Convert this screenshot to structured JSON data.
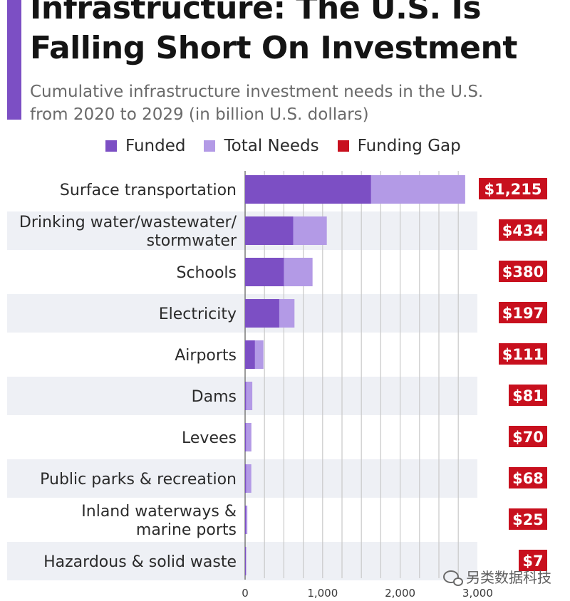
{
  "header": {
    "title": "Infrastructure: The U.S. Is\nFalling Short On Investment",
    "subtitle": "Cumulative infrastructure investment needs in the U.S.\nfrom 2020 to 2029 (in billion U.S. dollars)"
  },
  "watermark": "另类数据科技",
  "chart_data": {
    "type": "bar",
    "orientation": "horizontal",
    "stacked": false,
    "categories": [
      "Surface transportation",
      "Drinking water/wastewater/\nstormwater",
      "Schools",
      "Electricity",
      "Airports",
      "Dams",
      "Levees",
      "Public parks & recreation",
      "Inland waterways &\nmarine ports",
      "Hazardous & solid waste"
    ],
    "series": [
      {
        "name": "Funded",
        "color": "#7c4fc4",
        "values": [
          1624,
          620,
          500,
          440,
          126,
          12,
          11,
          12,
          4,
          3
        ]
      },
      {
        "name": "Total Needs",
        "color": "#b39ae6",
        "values": [
          2839,
          1054,
          870,
          637,
          237,
          93,
          81,
          80,
          29,
          10
        ]
      }
    ],
    "funding_gap": {
      "name": "Funding Gap",
      "color": "#c8101e",
      "labels": [
        "$1,215",
        "$434",
        "$380",
        "$197",
        "$111",
        "$81",
        "$70",
        "$68",
        "$25",
        "$7"
      ]
    },
    "xticks": [
      "0",
      "1,000",
      "2,000",
      "3,000"
    ],
    "xlim": [
      0,
      3000
    ],
    "grid": true,
    "legend_position": "top"
  }
}
